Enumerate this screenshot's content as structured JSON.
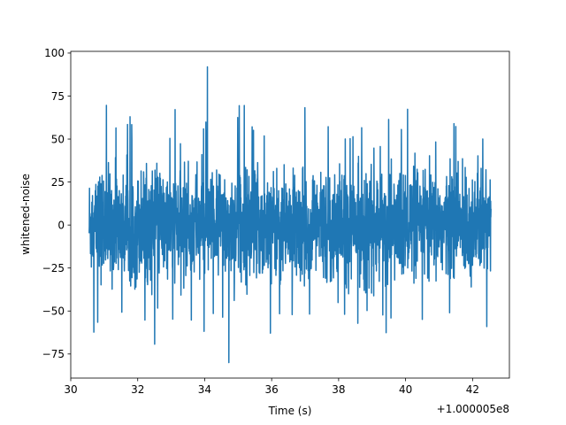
{
  "chart_data": {
    "type": "line",
    "title": "",
    "xlabel": "Time (s)",
    "ylabel": "whitened-noise",
    "x_offset_label": "+1.000005e8",
    "xlim": [
      30.0,
      43.1
    ],
    "ylim": [
      -89.0,
      101.0
    ],
    "x_ticks": [
      30,
      32,
      34,
      36,
      38,
      40,
      42
    ],
    "x_tick_labels": [
      "30",
      "32",
      "34",
      "36",
      "38",
      "40",
      "42"
    ],
    "y_ticks": [
      -75,
      -50,
      -25,
      0,
      25,
      50,
      75,
      100
    ],
    "y_tick_labels": [
      "−75",
      "−50",
      "−25",
      "0",
      "25",
      "50",
      "75",
      "100"
    ],
    "grid": false,
    "legend": "none",
    "series": [
      {
        "color": "#1f77b4",
        "x_range": [
          30.55,
          42.55
        ],
        "envelope": {
          "typical_upper": 40,
          "typical_lower": -40,
          "peak_max": 92,
          "peak_max_x": 34.08,
          "peak_min": -80,
          "peak_min_x": 34.72
        }
      }
    ]
  }
}
